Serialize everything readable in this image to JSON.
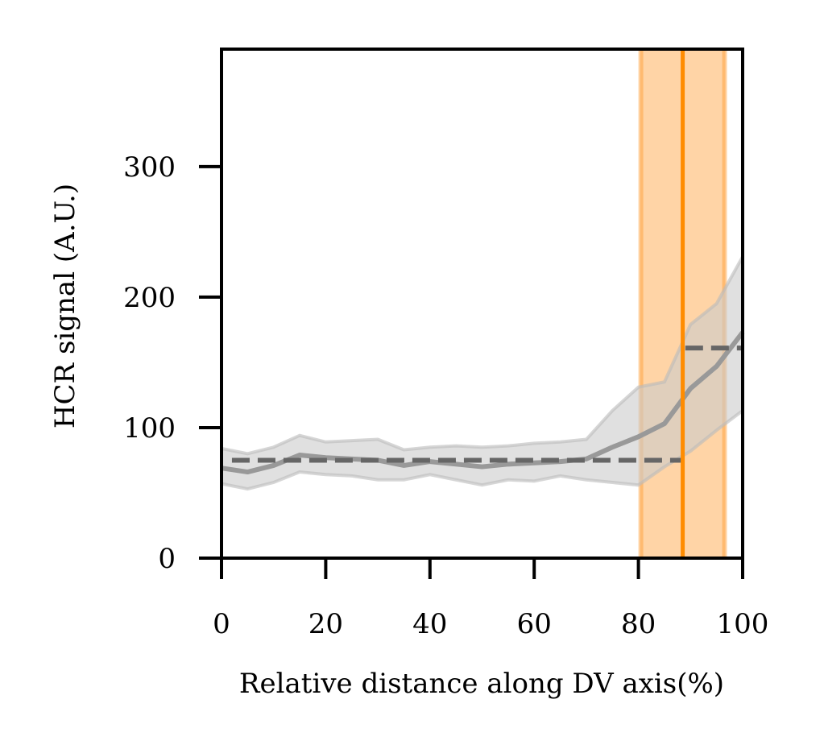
{
  "chart_data": {
    "type": "line",
    "title": "",
    "xlabel": "Relative distance along DV axis(%)",
    "ylabel": "HCR signal (A.U.)",
    "xlim": [
      0,
      100
    ],
    "ylim": [
      0,
      390
    ],
    "xticks": [
      0,
      20,
      40,
      60,
      80,
      100
    ],
    "yticks": [
      0,
      100,
      200,
      300
    ],
    "xtick_labels": [
      "0",
      "20",
      "40",
      "60",
      "80",
      "100"
    ],
    "ytick_labels": [
      "0",
      "100",
      "200",
      "300"
    ],
    "grid": false,
    "legend": "none",
    "series": [
      {
        "x": [
          0,
          5,
          10,
          15,
          20,
          25,
          30,
          35,
          40,
          45,
          50,
          55,
          60,
          65,
          70,
          75,
          80,
          85,
          90,
          95,
          100
        ],
        "values": [
          69,
          66,
          71,
          79,
          77,
          76,
          75,
          71,
          74,
          72,
          70,
          72,
          73,
          74,
          76,
          85,
          93,
          103,
          130,
          147,
          173
        ],
        "upper": [
          84,
          80,
          85,
          94,
          89,
          90,
          91,
          83,
          85,
          86,
          85,
          86,
          88,
          89,
          91,
          113,
          131,
          135,
          179,
          195,
          231
        ],
        "lower": [
          57,
          53,
          58,
          66,
          64,
          63,
          60,
          60,
          64,
          60,
          56,
          60,
          59,
          63,
          60,
          58,
          56,
          70,
          82,
          98,
          113
        ],
        "color": "#999999",
        "band_color": "#cccccc"
      }
    ],
    "reference_lines": [
      {
        "x_start": 2,
        "x_end": 88.5,
        "y": 75,
        "style": "dashed",
        "color": "#666666"
      },
      {
        "x_start": 89,
        "x_end": 100,
        "y": 161,
        "style": "dashed",
        "color": "#666666"
      }
    ],
    "vertical_line": {
      "x": 88.5,
      "color": "#ff8c00"
    },
    "shaded_band": {
      "x_start": 80,
      "x_end": 97,
      "color": "#ffa94d"
    }
  }
}
